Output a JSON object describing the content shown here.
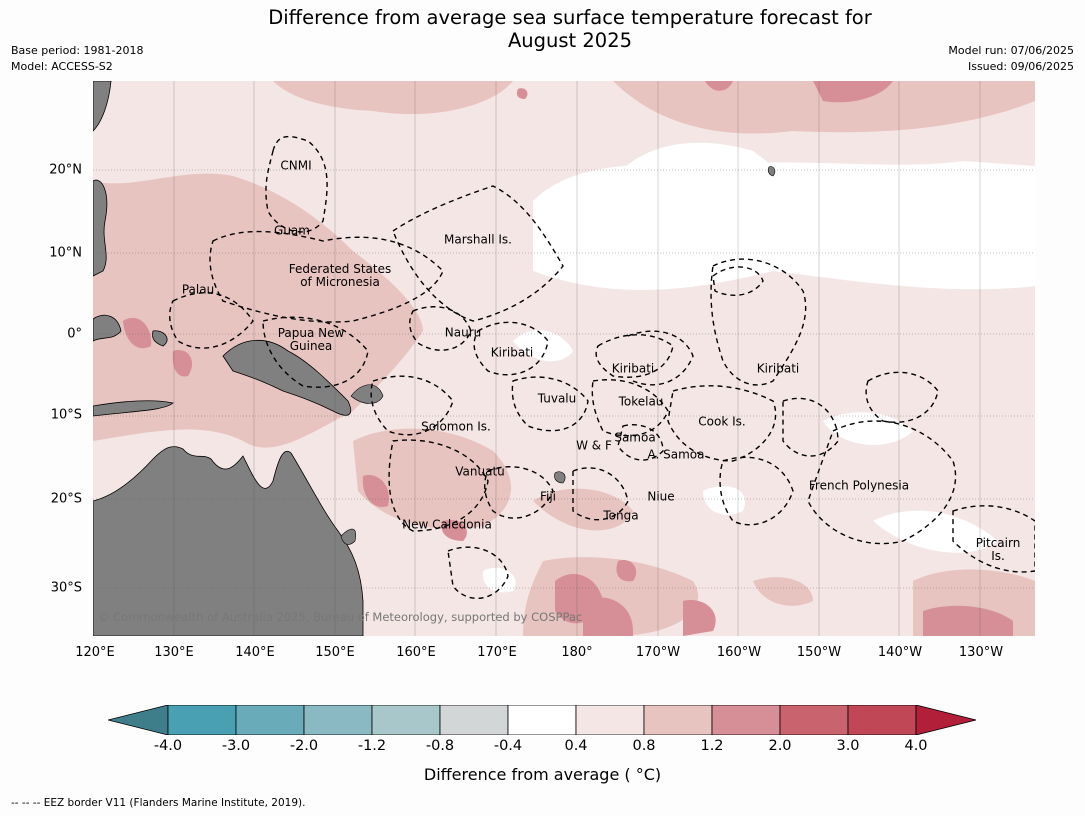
{
  "title_line1": "Difference from average sea surface temperature forecast for",
  "title_line2": "August 2025",
  "base_period": "Base period: 1981-2018",
  "model": "Model: ACCESS-S2",
  "model_run": "Model run: 07/06/2025",
  "issued": "Issued: 09/06/2025",
  "copyright": "© Commonwealth of Australia 2025, Bureau of Meteorology, supported by COSPPac",
  "lat_labels": [
    "20°N",
    "10°N",
    "0°",
    "10°S",
    "20°S",
    "30°S"
  ],
  "lon_labels": [
    "120°E",
    "130°E",
    "140°E",
    "150°E",
    "160°E",
    "170°E",
    "180°",
    "170°W",
    "160°W",
    "150°W",
    "140°W",
    "130°W"
  ],
  "region_labels": {
    "cnmi": "CNMI",
    "guam": "Guam",
    "marshall": "Marshall Is.",
    "fsm_1": "Federated States",
    "fsm_2": "of Micronesia",
    "palau": "Palau",
    "png_1": "Papua New",
    "png_2": "Guinea",
    "nauru": "Nauru",
    "kiribati_w": "Kiribati",
    "kiribati_c": "Kiribati",
    "kiribati_e": "Kiribati",
    "tuvalu": "Tuvalu",
    "tokelau": "Tokelau",
    "solomon": "Solomon Is.",
    "wf": "W & F",
    "samoa": "Samoa",
    "asamoa": "A. Samoa",
    "cook": "Cook Is.",
    "vanuatu": "Vanuatu",
    "fiji": "Fiji",
    "niue": "Niue",
    "tonga": "Tonga",
    "frpoly": "French Polynesia",
    "newcal": "New Caledonia",
    "pitcairn_1": "Pitcairn",
    "pitcairn_2": "Is."
  },
  "colorbar": {
    "ticks": [
      "-4.0",
      "-3.0",
      "-2.0",
      "-1.2",
      "-0.8",
      "-0.4",
      "0.4",
      "0.8",
      "1.2",
      "2.0",
      "3.0",
      "4.0"
    ],
    "colors": [
      "#3d7e8a",
      "#4aa0b3",
      "#6aabba",
      "#8ab8c3",
      "#a7c7cb",
      "#d2d6d6",
      "#ffffff",
      "#f4e6e5",
      "#e8c4c1",
      "#d68f97",
      "#c9646f",
      "#bf4756",
      "#b11f38"
    ],
    "label": "Difference from average ( °C)"
  },
  "source_note": "--  --  -- EEZ border V11 (Flanders Marine Institute, 2019)."
}
